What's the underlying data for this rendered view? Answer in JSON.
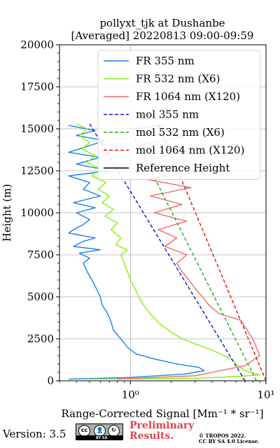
{
  "chart_data": {
    "type": "line",
    "title": "pollyxt_tjk at Dushanbe",
    "subtitle": "[Averaged] 20220813 09:00-09:59",
    "xlabel": "Range-Corrected Signal [Mm⁻¹ * sr⁻¹]",
    "ylabel": "Height (m)",
    "xscale": "log",
    "xlim": [
      0.3,
      10
    ],
    "ylim": [
      0,
      20000
    ],
    "xticks": [
      "10⁰",
      "10¹"
    ],
    "yticks": [
      "0",
      "2500",
      "5000",
      "7500",
      "10000",
      "12500",
      "15000",
      "17500",
      "20000"
    ],
    "grid": true,
    "legend_position": "top-right",
    "series": [
      {
        "name": "FR 355 nm",
        "color": "#1a80e8",
        "style": "solid",
        "points": [
          [
            0.35,
            100
          ],
          [
            1.0,
            200
          ],
          [
            2.5,
            400
          ],
          [
            3.5,
            600
          ],
          [
            3.2,
            800
          ],
          [
            2.2,
            1000
          ],
          [
            1.5,
            1300
          ],
          [
            1.1,
            1600
          ],
          [
            0.95,
            2000
          ],
          [
            0.85,
            2500
          ],
          [
            0.75,
            3000
          ],
          [
            0.72,
            3500
          ],
          [
            0.68,
            4000
          ],
          [
            0.62,
            4500
          ],
          [
            0.6,
            5000
          ],
          [
            0.56,
            5500
          ],
          [
            0.52,
            6000
          ],
          [
            0.48,
            6500
          ],
          [
            0.45,
            7000
          ],
          [
            0.5,
            7300
          ],
          [
            0.42,
            7600
          ],
          [
            0.6,
            7800
          ],
          [
            0.38,
            8000
          ],
          [
            0.45,
            8300
          ],
          [
            0.55,
            8500
          ],
          [
            0.35,
            8800
          ],
          [
            0.4,
            9100
          ],
          [
            0.45,
            9300
          ],
          [
            0.5,
            9600
          ],
          [
            0.4,
            10000
          ],
          [
            0.55,
            10300
          ],
          [
            0.38,
            10600
          ],
          [
            0.6,
            11000
          ],
          [
            0.45,
            11400
          ],
          [
            0.5,
            11800
          ],
          [
            0.35,
            12200
          ],
          [
            0.7,
            12500
          ],
          [
            0.4,
            12900
          ],
          [
            0.6,
            13300
          ],
          [
            0.35,
            13600
          ],
          [
            0.5,
            14000
          ],
          [
            0.65,
            14300
          ],
          [
            0.4,
            14600
          ],
          [
            0.55,
            14900
          ],
          [
            0.35,
            15200
          ]
        ]
      },
      {
        "name": "FR 532 nm (X6)",
        "color": "#88f010",
        "style": "solid",
        "points": [
          [
            0.5,
            100
          ],
          [
            3.0,
            150
          ],
          [
            6.0,
            250
          ],
          [
            9.0,
            350
          ],
          [
            7.0,
            600
          ],
          [
            6.2,
            900
          ],
          [
            5.5,
            1300
          ],
          [
            4.6,
            1600
          ],
          [
            3.8,
            1900
          ],
          [
            3.0,
            2200
          ],
          [
            2.4,
            2500
          ],
          [
            2.0,
            2900
          ],
          [
            1.7,
            3300
          ],
          [
            1.55,
            3600
          ],
          [
            1.4,
            4000
          ],
          [
            1.25,
            4500
          ],
          [
            1.15,
            5000
          ],
          [
            1.08,
            5500
          ],
          [
            1.0,
            6000
          ],
          [
            0.95,
            6500
          ],
          [
            0.9,
            7000
          ],
          [
            0.85,
            7500
          ],
          [
            0.95,
            7800
          ],
          [
            0.78,
            8100
          ],
          [
            0.85,
            8500
          ],
          [
            0.72,
            9000
          ],
          [
            0.8,
            9400
          ],
          [
            0.65,
            9800
          ],
          [
            0.75,
            10200
          ],
          [
            0.62,
            10600
          ],
          [
            0.7,
            11000
          ],
          [
            0.58,
            11400
          ],
          [
            0.66,
            11800
          ],
          [
            0.52,
            12200
          ],
          [
            0.6,
            12600
          ],
          [
            0.48,
            13000
          ],
          [
            0.55,
            13400
          ],
          [
            0.44,
            13800
          ],
          [
            0.5,
            14200
          ],
          [
            0.42,
            14600
          ],
          [
            0.48,
            15000
          ],
          [
            0.4,
            15300
          ]
        ]
      },
      {
        "name": "FR 1064 nm (X120)",
        "color": "#f06a6a",
        "style": "solid",
        "points": [
          [
            0.8,
            100
          ],
          [
            3.0,
            300
          ],
          [
            7.0,
            900
          ],
          [
            9.0,
            1500
          ],
          [
            8.0,
            2500
          ],
          [
            6.5,
            3600
          ],
          [
            4.5,
            4000
          ],
          [
            3.8,
            4500
          ],
          [
            3.4,
            5000
          ],
          [
            3.0,
            5500
          ],
          [
            2.7,
            6000
          ],
          [
            2.4,
            6500
          ],
          [
            2.2,
            7000
          ],
          [
            2.6,
            7500
          ],
          [
            1.8,
            8000
          ],
          [
            2.2,
            8500
          ],
          [
            1.6,
            9000
          ],
          [
            2.6,
            9500
          ],
          [
            1.5,
            10000
          ],
          [
            2.4,
            10500
          ],
          [
            1.4,
            11000
          ],
          [
            2.8,
            11500
          ],
          [
            1.3,
            12000
          ],
          [
            3.5,
            12500
          ],
          [
            1.2,
            13000
          ],
          [
            2.0,
            13500
          ],
          [
            1.1,
            14000
          ],
          [
            2.5,
            14500
          ],
          [
            1.0,
            15000
          ],
          [
            1.8,
            15200
          ]
        ]
      },
      {
        "name": "mol 355 nm",
        "color": "#1010d0",
        "style": "dashed",
        "points": [
          [
            7.0,
            0
          ],
          [
            0.5,
            15300
          ]
        ]
      },
      {
        "name": "mol 532 nm (X6)",
        "color": "#22aa22",
        "style": "dashed",
        "points": [
          [
            8.5,
            0
          ],
          [
            0.95,
            15300
          ]
        ]
      },
      {
        "name": "mol 1064 nm (X120)",
        "color": "#e01010",
        "style": "dashed",
        "points": [
          [
            10.0,
            0
          ],
          [
            1.6,
            15300
          ]
        ]
      },
      {
        "name": "Reference Height",
        "color": "#000000",
        "style": "solid",
        "points": []
      }
    ]
  },
  "footer": {
    "version": "Version: 3.5",
    "cc_label": "BY SA",
    "preliminary_line1": "Preliminary",
    "preliminary_line2": "Results.",
    "copyright_line1": "© TROPOS 2022.",
    "copyright_line2": "CC BY SA 4.0 License."
  }
}
